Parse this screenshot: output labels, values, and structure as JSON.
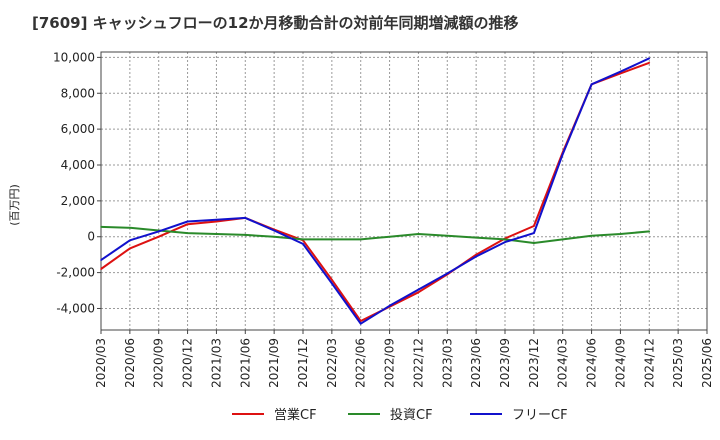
{
  "chart_data": {
    "type": "line",
    "title": "[7609]  キャッシュフローの12か月移動合計の対前年同期増減額の推移",
    "ylabel": "(百万円)",
    "xlabel": "",
    "ylim": [
      -5200,
      10300
    ],
    "yticks": [
      10000,
      8000,
      6000,
      4000,
      2000,
      0,
      -2000,
      -4000
    ],
    "ytick_labels": [
      "10,000",
      "8,000",
      "6,000",
      "4,000",
      "2,000",
      "0",
      "-2,000",
      "-4,000"
    ],
    "categories": [
      "2020/03",
      "2020/06",
      "2020/09",
      "2020/12",
      "2021/03",
      "2021/06",
      "2021/09",
      "2021/12",
      "2022/03",
      "2022/06",
      "2022/09",
      "2022/12",
      "2023/03",
      "2023/06",
      "2023/09",
      "2023/12",
      "2024/03",
      "2024/06",
      "2024/09",
      "2024/12",
      "2025/03",
      "2025/06"
    ],
    "grid": true,
    "legend_position": "bottom",
    "series": [
      {
        "name": "営業CF",
        "color": "#dd1111",
        "values": [
          -1800,
          -650,
          0,
          700,
          850,
          1050,
          400,
          -200,
          -2400,
          -4700,
          -3900,
          -3100,
          -2100,
          -1000,
          -100,
          600,
          4700,
          8500,
          9100,
          9700,
          null,
          null
        ]
      },
      {
        "name": "投資CF",
        "color": "#2a8a2a",
        "values": [
          550,
          500,
          350,
          200,
          150,
          100,
          0,
          -150,
          -150,
          -150,
          0,
          150,
          50,
          -50,
          -150,
          -350,
          -150,
          50,
          150,
          300,
          null,
          null
        ]
      },
      {
        "name": "フリーCF",
        "color": "#1111cc",
        "values": [
          -1300,
          -200,
          300,
          850,
          950,
          1050,
          350,
          -400,
          -2600,
          -4850,
          -3850,
          -2950,
          -2050,
          -1100,
          -300,
          200,
          4600,
          8500,
          9200,
          9950,
          null,
          null
        ]
      }
    ]
  }
}
